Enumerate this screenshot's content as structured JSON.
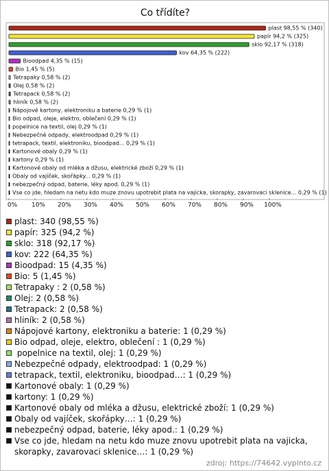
{
  "chart_data": {
    "type": "bar",
    "orientation": "horizontal",
    "title": "Co třídíte?",
    "categories": [
      "plast",
      "papír",
      "sklo",
      "kov",
      "Bioodpad",
      "Bio",
      "Tetrapaky",
      "Olej",
      "Tetrapack",
      "hliník",
      "Nápojové kartony, elektroniku a baterie",
      "Bio odpad, oleje, elektro, oblečení",
      "popelnice na textil, olej",
      "Nebezpečné odpady, elektroodpad",
      "tetrapack, textil, elektroniku, bioodpad...",
      "Kartonové obaly",
      "kartony",
      "Kartonové obaly od mléka a džusu, elektrické zboží",
      "Obaly od vajíček, skořápky...",
      "nebezpečný odpad, baterie, léky apod.",
      "Vse co jde, hledam na netu kdo muze znovu upotrebit plata na vajicka, skorapky, zavarovaci sklenice..."
    ],
    "values": [
      98.55,
      94.2,
      92.17,
      64.35,
      4.35,
      1.45,
      0.58,
      0.58,
      0.58,
      0.58,
      0.29,
      0.29,
      0.29,
      0.29,
      0.29,
      0.29,
      0.29,
      0.29,
      0.29,
      0.29,
      0.29
    ],
    "value_labels": [
      "plast 98,55 % (340)",
      "papír 94,2 % (325)",
      "sklo 92,17 % (318)",
      "kov 64,35 % (222)",
      "Bioodpad 4,35 % (15)",
      "Bio 1,45 % (5)",
      "Tetrapaky  0,58 % (2)",
      "Olej 0,58 % (2)",
      "Tetrapack 0,58 % (2)",
      "hliník 0,58 % (2)",
      "Nápojové kartony, elektroniku a baterie 0,29 % (1)",
      "Bio odpad, oleje, elektro, oblečení  0,29 % (1)",
      " popelnice na textil, olej 0,29 % (1)",
      "Nebezpečné odpady, elektroodpad 0,29 % (1)",
      "tetrapack, textil, elektroniku, bioodpad... 0,29 % (1)",
      "Kartonové obaly 0,29 % (1)",
      "kartony 0,29 % (1)",
      "Kartonové obaly od mléka a džusu, elektrické zboží 0,29 % (1)",
      "Obaly od vajíček, skořápky... 0,29 % (1)",
      "nebezpečný odpad, baterie, léky apod. 0,29 % (1)",
      "Vse co jde, hledam na netu kdo muze znovu upotrebit plata na vajicka, skorapky, zavarovaci sklenice... 0,29 % (1)"
    ],
    "legend_labels": [
      "plast: 340 (98,55 %)",
      "papír: 325 (94,2 %)",
      "sklo: 318 (92,17 %)",
      "kov: 222 (64,35 %)",
      "Bioodpad: 15 (4,35 %)",
      "Bio: 5 (1,45 %)",
      "Tetrapaky : 2 (0,58 %)",
      "Olej: 2 (0,58 %)",
      "Tetrapack: 2 (0,58 %)",
      "hliník: 2 (0,58 %)",
      "Nápojové kartony, elektroniku a baterie: 1 (0,29 %)",
      "Bio odpad, oleje, elektro, oblečení : 1 (0,29 %)",
      " popelnice na textil, olej: 1 (0,29 %)",
      "Nebezpečné odpady, elektroodpad: 1 (0,29 %)",
      "tetrapack, textil, elektroniku, bioodpad…: 1 (0,29 %)",
      "Kartonové obaly: 1 (0,29 %)",
      "kartony: 1 (0,29 %)",
      "Kartonové obaly od mléka a džusu, elektrické zboží: 1 (0,29 %)",
      "Obaly od vajíček, skořápky…: 1 (0,29 %)",
      "nebezpečný odpad, baterie, léky apod.: 1 (0,29 %)",
      "Vse co jde, hledam na netu kdo muze znovu upotrebit plata na vajicka, skorapky, zavarovaci sklenice…: 1 (0,29 %)"
    ],
    "colors": [
      "#a8281a",
      "#f2e23a",
      "#2ea02e",
      "#4060d0",
      "#b030c0",
      "#e04a20",
      "#a4e068",
      "#208a6e",
      "#207488",
      "#a878a8",
      "#e08020",
      "#e0d020",
      "#8ee070",
      "#88a8e8",
      "#6080d0",
      "#111111",
      "#111111",
      "#111111",
      "#111111",
      "#111111",
      "#111111"
    ],
    "xlim": [
      0,
      100
    ],
    "xticks": [
      {
        "value": 0,
        "label": "0%"
      },
      {
        "value": 10,
        "label": "10%"
      },
      {
        "value": 20,
        "label": "20%"
      },
      {
        "value": 30,
        "label": "30%"
      },
      {
        "value": 40,
        "label": "40%"
      },
      {
        "value": 50,
        "label": "50%"
      },
      {
        "value": 60,
        "label": "60%"
      },
      {
        "value": 70,
        "label": "70%"
      },
      {
        "value": 80,
        "label": "80%"
      },
      {
        "value": 90,
        "label": "90%"
      },
      {
        "value": 100,
        "label": "100%"
      }
    ],
    "grid": false,
    "source": "zdroj: https://74642.vyplnto.cz"
  }
}
